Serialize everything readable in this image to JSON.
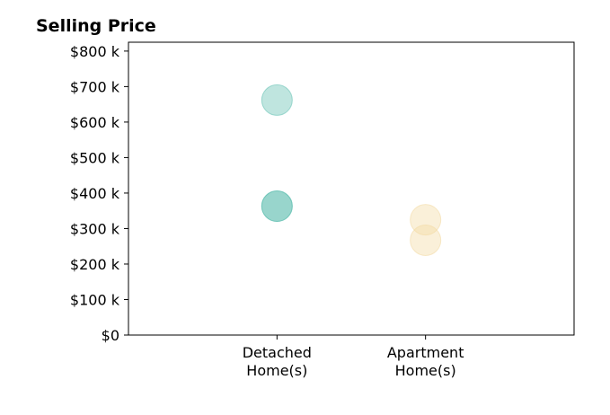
{
  "chart_data": {
    "type": "scatter",
    "title": "Selling Price",
    "xlabel": "",
    "ylabel": "",
    "categories": [
      [
        "Detached",
        "Home(s)"
      ],
      [
        "Apartment",
        "Home(s)"
      ]
    ],
    "xlim": [
      0,
      3
    ],
    "ylim": [
      0,
      825000
    ],
    "yticks": [
      0,
      100000,
      200000,
      300000,
      400000,
      500000,
      600000,
      700000,
      800000
    ],
    "ytick_labels": [
      "$0",
      "$100 k",
      "$200 k",
      "$300 k",
      "$400 k",
      "$500 k",
      "$600 k",
      "$700 k",
      "$800 k"
    ],
    "grid": false,
    "series": [
      {
        "color": "#5fbfb0",
        "points": [
          {
            "category": 0,
            "value": 662000
          },
          {
            "category": 0,
            "value": 363000
          },
          {
            "category": 0,
            "value": 363000
          }
        ]
      },
      {
        "color": "#f2d9a0",
        "points": [
          {
            "category": 1,
            "value": 325000
          },
          {
            "category": 1,
            "value": 267000
          }
        ]
      }
    ]
  }
}
